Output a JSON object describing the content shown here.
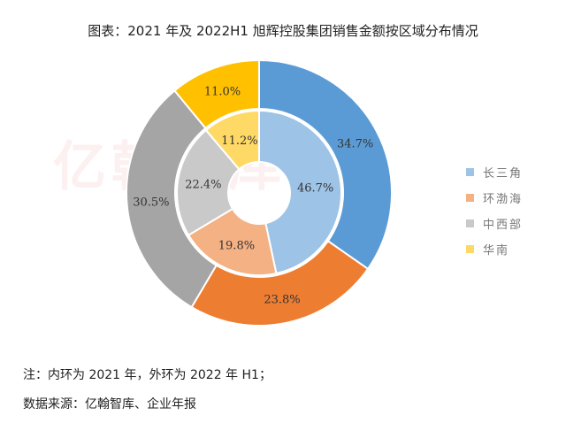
{
  "watermark": "亿翰智库",
  "chart_data": {
    "type": "pie",
    "subtype": "nested-donut",
    "title": "图表：2021 年及 2022H1 旭辉控股集团销售金额按区域分布情况",
    "categories": [
      "长三角",
      "环渤海",
      "中西部",
      "华南"
    ],
    "series": [
      {
        "ring": "inner",
        "values": [
          46.7,
          19.8,
          22.4,
          11.2
        ],
        "labels": [
          "46.7%",
          "19.8%",
          "22.4%",
          "11.2%"
        ],
        "colors": [
          "#9DC3E6",
          "#F4B183",
          "#C9C9C9",
          "#FFD966"
        ]
      },
      {
        "ring": "outer",
        "values": [
          34.7,
          23.8,
          30.5,
          11.0
        ],
        "labels": [
          "34.7%",
          "23.8%",
          "30.5%",
          "11.0%"
        ],
        "colors": [
          "#5B9BD5",
          "#ED7D31",
          "#A5A5A5",
          "#FFC000"
        ]
      }
    ],
    "legend": {
      "placement": "right",
      "items": [
        {
          "label": "长三角",
          "color": "#9DC3E6"
        },
        {
          "label": "环渤海",
          "color": "#F4B183"
        },
        {
          "label": "中西部",
          "color": "#C9C9C9"
        },
        {
          "label": "华南",
          "color": "#FFD966"
        }
      ]
    }
  },
  "notes": {
    "ring_note": "注：内环为 2021 年，外环为 2022 年 H1；",
    "source": "数据来源：亿翰智库、企业年报"
  }
}
